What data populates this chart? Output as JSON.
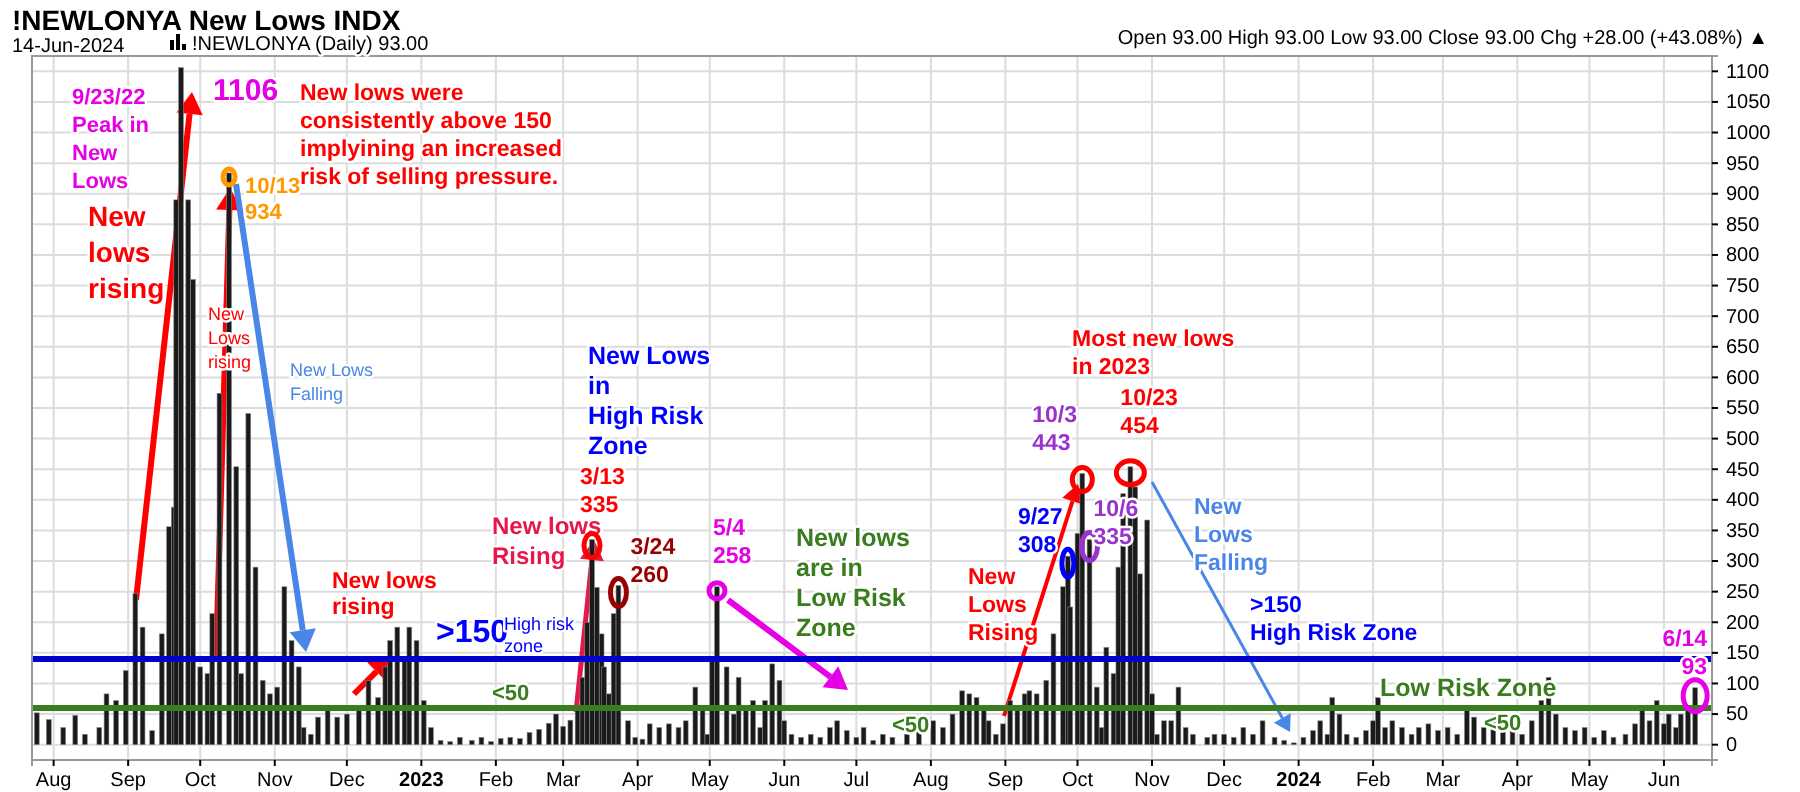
{
  "chart_data": {
    "type": "bar",
    "title": "!NEWLONYA New Lows INDX",
    "subtitle": "14-Jun-2024",
    "x": [
      "2022-07-25",
      "2022-07-30",
      "2022-08-05",
      "2022-08-10",
      "2022-08-14",
      "2022-08-20",
      "2022-08-23",
      "2022-08-27",
      "2022-08-31",
      "2022-09-04",
      "2022-09-07",
      "2022-09-11",
      "2022-09-15",
      "2022-09-18",
      "2022-09-20",
      "2022-09-21",
      "2022-09-23",
      "2022-09-26",
      "2022-09-28",
      "2022-10-01",
      "2022-10-04",
      "2022-10-06",
      "2022-10-09",
      "2022-10-13",
      "2022-10-16",
      "2022-10-18",
      "2022-10-21",
      "2022-10-24",
      "2022-10-27",
      "2022-10-30",
      "2022-11-02",
      "2022-11-05",
      "2022-11-08",
      "2022-11-11",
      "2022-11-13",
      "2022-11-16",
      "2022-11-19",
      "2022-11-23",
      "2022-11-27",
      "2022-12-01",
      "2022-12-06",
      "2022-12-10",
      "2022-12-14",
      "2022-12-17",
      "2022-12-19",
      "2022-12-22",
      "2022-12-25",
      "2022-12-27",
      "2022-12-30",
      "2023-01-02",
      "2023-01-05",
      "2023-01-09",
      "2023-01-13",
      "2023-01-17",
      "2023-01-22",
      "2023-01-26",
      "2023-01-30",
      "2023-02-03",
      "2023-02-07",
      "2023-02-11",
      "2023-02-15",
      "2023-02-19",
      "2023-02-23",
      "2023-02-26",
      "2023-03-01",
      "2023-03-04",
      "2023-03-07",
      "2023-03-09",
      "2023-03-11",
      "2023-03-13",
      "2023-03-15",
      "2023-03-17",
      "2023-03-18",
      "2023-03-20",
      "2023-03-22",
      "2023-03-24",
      "2023-03-28",
      "2023-03-31",
      "2023-04-03",
      "2023-04-06",
      "2023-04-10",
      "2023-04-14",
      "2023-04-18",
      "2023-04-21",
      "2023-04-25",
      "2023-04-28",
      "2023-04-30",
      "2023-05-02",
      "2023-05-04",
      "2023-05-08",
      "2023-05-11",
      "2023-05-13",
      "2023-05-16",
      "2023-05-19",
      "2023-05-22",
      "2023-05-24",
      "2023-05-27",
      "2023-05-30",
      "2023-06-01",
      "2023-06-04",
      "2023-06-08",
      "2023-06-12",
      "2023-06-16",
      "2023-06-20",
      "2023-06-23",
      "2023-06-27",
      "2023-07-01",
      "2023-07-04",
      "2023-07-08",
      "2023-07-12",
      "2023-07-16",
      "2023-07-22",
      "2023-07-27",
      "2023-08-02",
      "2023-08-06",
      "2023-08-10",
      "2023-08-14",
      "2023-08-17",
      "2023-08-20",
      "2023-08-23",
      "2023-08-25",
      "2023-08-28",
      "2023-08-31",
      "2023-09-03",
      "2023-09-06",
      "2023-09-09",
      "2023-09-11",
      "2023-09-14",
      "2023-09-18",
      "2023-09-21",
      "2023-09-25",
      "2023-09-27",
      "2023-09-28",
      "2023-10-01",
      "2023-10-03",
      "2023-10-06",
      "2023-10-09",
      "2023-10-11",
      "2023-10-13",
      "2023-10-16",
      "2023-10-18",
      "2023-10-20",
      "2023-10-23",
      "2023-10-25",
      "2023-10-27",
      "2023-10-30",
      "2023-11-01",
      "2023-11-03",
      "2023-11-06",
      "2023-11-09",
      "2023-11-12",
      "2023-11-15",
      "2023-11-18",
      "2023-11-24",
      "2023-11-27",
      "2023-12-01",
      "2023-12-05",
      "2023-12-09",
      "2023-12-13",
      "2023-12-17",
      "2023-12-22",
      "2023-12-26",
      "2023-12-30",
      "2024-01-03",
      "2024-01-07",
      "2024-01-10",
      "2024-01-13",
      "2024-01-15",
      "2024-01-18",
      "2024-01-21",
      "2024-01-25",
      "2024-01-29",
      "2024-02-01",
      "2024-02-03",
      "2024-02-06",
      "2024-02-09",
      "2024-02-13",
      "2024-02-17",
      "2024-02-20",
      "2024-02-24",
      "2024-02-28",
      "2024-03-03",
      "2024-03-07",
      "2024-03-11",
      "2024-03-14",
      "2024-03-18",
      "2024-03-22",
      "2024-03-26",
      "2024-03-30",
      "2024-04-03",
      "2024-04-07",
      "2024-04-11",
      "2024-04-14",
      "2024-04-17",
      "2024-04-21",
      "2024-04-25",
      "2024-04-29",
      "2024-05-03",
      "2024-05-07",
      "2024-05-11",
      "2024-05-16",
      "2024-05-20",
      "2024-05-23",
      "2024-05-26",
      "2024-05-29",
      "2024-06-01",
      "2024-06-03",
      "2024-06-06",
      "2024-06-08",
      "2024-06-11",
      "2024-06-14"
    ],
    "values": [
      52,
      41,
      28,
      48,
      17,
      28,
      83,
      72,
      121,
      247,
      192,
      23,
      181,
      356,
      388,
      890,
      1106,
      890,
      760,
      127,
      116,
      214,
      574,
      934,
      454,
      116,
      541,
      290,
      105,
      83,
      94,
      258,
      170,
      127,
      28,
      17,
      45,
      56,
      45,
      50,
      61,
      105,
      77,
      127,
      170,
      192,
      143,
      192,
      170,
      72,
      28,
      7,
      5,
      12,
      7,
      12,
      5,
      10,
      12,
      10,
      20,
      25,
      35,
      50,
      30,
      40,
      60,
      110,
      200,
      335,
      257,
      181,
      127,
      83,
      214,
      260,
      39,
      12,
      9,
      34,
      28,
      34,
      28,
      39,
      94,
      61,
      17,
      143,
      258,
      127,
      50,
      110,
      61,
      72,
      28,
      72,
      132,
      105,
      39,
      17,
      12,
      17,
      12,
      28,
      39,
      23,
      12,
      28,
      7,
      17,
      12,
      17,
      28,
      39,
      28,
      50,
      88,
      83,
      77,
      56,
      39,
      17,
      34,
      72,
      61,
      83,
      88,
      83,
      105,
      181,
      258,
      308,
      225,
      345,
      443,
      335,
      94,
      28,
      159,
      116,
      290,
      410,
      454,
      421,
      279,
      367,
      83,
      17,
      39,
      39,
      94,
      28,
      17,
      12,
      17,
      17,
      12,
      28,
      17,
      39,
      12,
      7,
      3,
      12,
      23,
      39,
      17,
      77,
      50,
      17,
      12,
      23,
      39,
      77,
      28,
      39,
      28,
      17,
      28,
      34,
      23,
      28,
      17,
      56,
      45,
      28,
      45,
      34,
      23,
      17,
      39,
      72,
      110,
      50,
      28,
      23,
      28,
      12,
      23,
      12,
      17,
      34,
      61,
      39,
      72,
      34,
      50,
      28,
      50,
      61,
      93
    ],
    "color": "#1a1a1a",
    "xlim": [
      "2022-07-23",
      "2024-06-21"
    ],
    "xticks": [
      {
        "value": "2022-08-01",
        "label": "Aug"
      },
      {
        "value": "2022-09-01",
        "label": "Sep"
      },
      {
        "value": "2022-10-01",
        "label": "Oct"
      },
      {
        "value": "2022-11-01",
        "label": "Nov"
      },
      {
        "value": "2022-12-01",
        "label": "Dec"
      },
      {
        "value": "2023-01-01",
        "label": "2023"
      },
      {
        "value": "2023-02-01",
        "label": "Feb"
      },
      {
        "value": "2023-03-01",
        "label": "Mar"
      },
      {
        "value": "2023-04-01",
        "label": "Apr"
      },
      {
        "value": "2023-05-01",
        "label": "May"
      },
      {
        "value": "2023-06-01",
        "label": "Jun"
      },
      {
        "value": "2023-07-01",
        "label": "Jul"
      },
      {
        "value": "2023-08-01",
        "label": "Aug"
      },
      {
        "value": "2023-09-01",
        "label": "Sep"
      },
      {
        "value": "2023-10-01",
        "label": "Oct"
      },
      {
        "value": "2023-11-01",
        "label": "Nov"
      },
      {
        "value": "2023-12-01",
        "label": "Dec"
      },
      {
        "value": "2024-01-01",
        "label": "2024"
      },
      {
        "value": "2024-02-01",
        "label": "Feb"
      },
      {
        "value": "2024-03-01",
        "label": "Mar"
      },
      {
        "value": "2024-04-01",
        "label": "Apr"
      },
      {
        "value": "2024-05-01",
        "label": "May"
      },
      {
        "value": "2024-06-01",
        "label": "Jun"
      }
    ],
    "ylim": [
      -25,
      1125
    ],
    "yticks": [
      0,
      50,
      100,
      150,
      200,
      250,
      300,
      350,
      400,
      450,
      500,
      550,
      600,
      650,
      700,
      750,
      800,
      850,
      900,
      950,
      1000,
      1050,
      1100
    ],
    "grid": true,
    "ref_lines": [
      {
        "axis": "y",
        "value": 140,
        "color": "#0000cc"
      },
      {
        "axis": "y",
        "value": 60,
        "color": "#3a7d1e"
      }
    ],
    "annotations": [
      "Open 93.00  High 93.00  Low 93.00  Close 93.00  Chg +28.00 (+43.08%) ▲",
      "!NEWLONYA (Daily) 93.00",
      "9/23/22\nPeak in\nNew\nLows",
      {
        "text": "1106",
        "x": "2022-09-23",
        "y": 1106
      },
      "New\nlows\nrising",
      {
        "text": "10/13\n934",
        "x": "2022-10-13",
        "y": 934
      },
      "New lows were\nconsistently above 150\nimplyining an increased\nrisk of selling pressure.",
      "New\nLows\nrising",
      "New Lows\nFalling",
      "New lows\nrising",
      ">150",
      "High risk\nzone",
      "<50",
      {
        "text": "New lows\nRising",
        "x": "2023-03-13",
        "y": 335
      },
      "New Lows\nin\nHigh Risk\nZone",
      {
        "text": "3/13\n335",
        "x": "2023-03-13",
        "y": 335
      },
      {
        "text": "3/24\n260",
        "x": "2023-03-24",
        "y": 260
      },
      {
        "text": "5/4\n258",
        "x": "2023-05-04",
        "y": 258
      },
      "New lows\nare in\nLow Risk\nZone",
      "<50",
      "Most new lows\nin 2023",
      {
        "text": "10/23\n454",
        "x": "2023-10-23",
        "y": 454
      },
      {
        "text": "10/3\n443",
        "x": "2023-10-03",
        "y": 443
      },
      {
        "text": "9/27\n308",
        "x": "2023-09-27",
        "y": 308
      },
      {
        "text": "10/6\n335",
        "x": "2023-10-06",
        "y": 335
      },
      "New\nLows\nRising",
      "New\nLows\nFalling",
      ">150\nHigh Risk Zone",
      "Low Risk Zone",
      "<50",
      {
        "text": "6/14\n93",
        "x": "2024-06-14",
        "y": 93
      }
    ]
  }
}
